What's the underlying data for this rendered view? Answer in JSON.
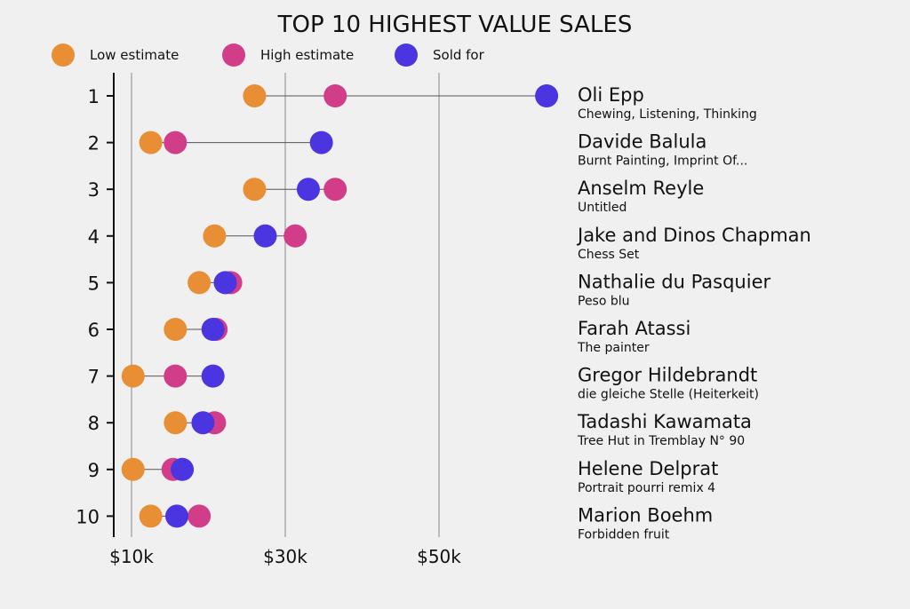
{
  "chart_data": {
    "type": "dot-range",
    "title": "TOP 10 HIGHEST VALUE SALES",
    "xlabel": "",
    "ylabel": "",
    "xlim": [
      7.7,
      64
    ],
    "x_ticks": [
      {
        "value": 10,
        "label": "$10k"
      },
      {
        "value": 30,
        "label": "$30k"
      },
      {
        "value": 50,
        "label": "$50k"
      }
    ],
    "grid": true,
    "legend_position": "top-left",
    "series": [
      {
        "name": "Low estimate",
        "key": "low",
        "color": "#e88f35"
      },
      {
        "name": "High estimate",
        "key": "high",
        "color": "#d23d8a"
      },
      {
        "name": "Sold for",
        "key": "sold",
        "color": "#4a35e0"
      }
    ],
    "rows": [
      {
        "rank": "1",
        "artist": "Oli Epp",
        "title": "Chewing, Listening, Thinking",
        "low": 26,
        "high": 36.5,
        "sold": 64
      },
      {
        "rank": "2",
        "artist": "Davide Balula",
        "title": "Burnt Painting, Imprint Of...",
        "low": 12.5,
        "high": 15.7,
        "sold": 34.7
      },
      {
        "rank": "3",
        "artist": "Anselm Reyle",
        "title": "Untitled",
        "low": 26,
        "high": 36.5,
        "sold": 33
      },
      {
        "rank": "4",
        "artist": "Jake and Dinos Chapman",
        "title": "Chess Set",
        "low": 20.8,
        "high": 31.3,
        "sold": 27.4
      },
      {
        "rank": "5",
        "artist": "Nathalie du Pasquier",
        "title": "Peso blu",
        "low": 18.8,
        "high": 22.9,
        "sold": 22.2
      },
      {
        "rank": "6",
        "artist": "Farah Atassi",
        "title": "The painter",
        "low": 15.7,
        "high": 21,
        "sold": 20.6
      },
      {
        "rank": "7",
        "artist": "Gregor Hildebrandt",
        "title": "die gleiche Stelle (Heiterkeit)",
        "low": 10.2,
        "high": 15.7,
        "sold": 20.6
      },
      {
        "rank": "8",
        "artist": "Tadashi Kawamata",
        "title": "Tree Hut in Tremblay N° 90",
        "low": 15.7,
        "high": 20.8,
        "sold": 19.3
      },
      {
        "rank": "9",
        "artist": "Helene Delprat",
        "title": "Portrait pourri remix 4",
        "low": 10.2,
        "high": 15.4,
        "sold": 16.6
      },
      {
        "rank": "10",
        "artist": "Marion Boehm",
        "title": "Forbidden fruit",
        "low": 12.5,
        "high": 18.8,
        "sold": 15.9
      }
    ]
  }
}
